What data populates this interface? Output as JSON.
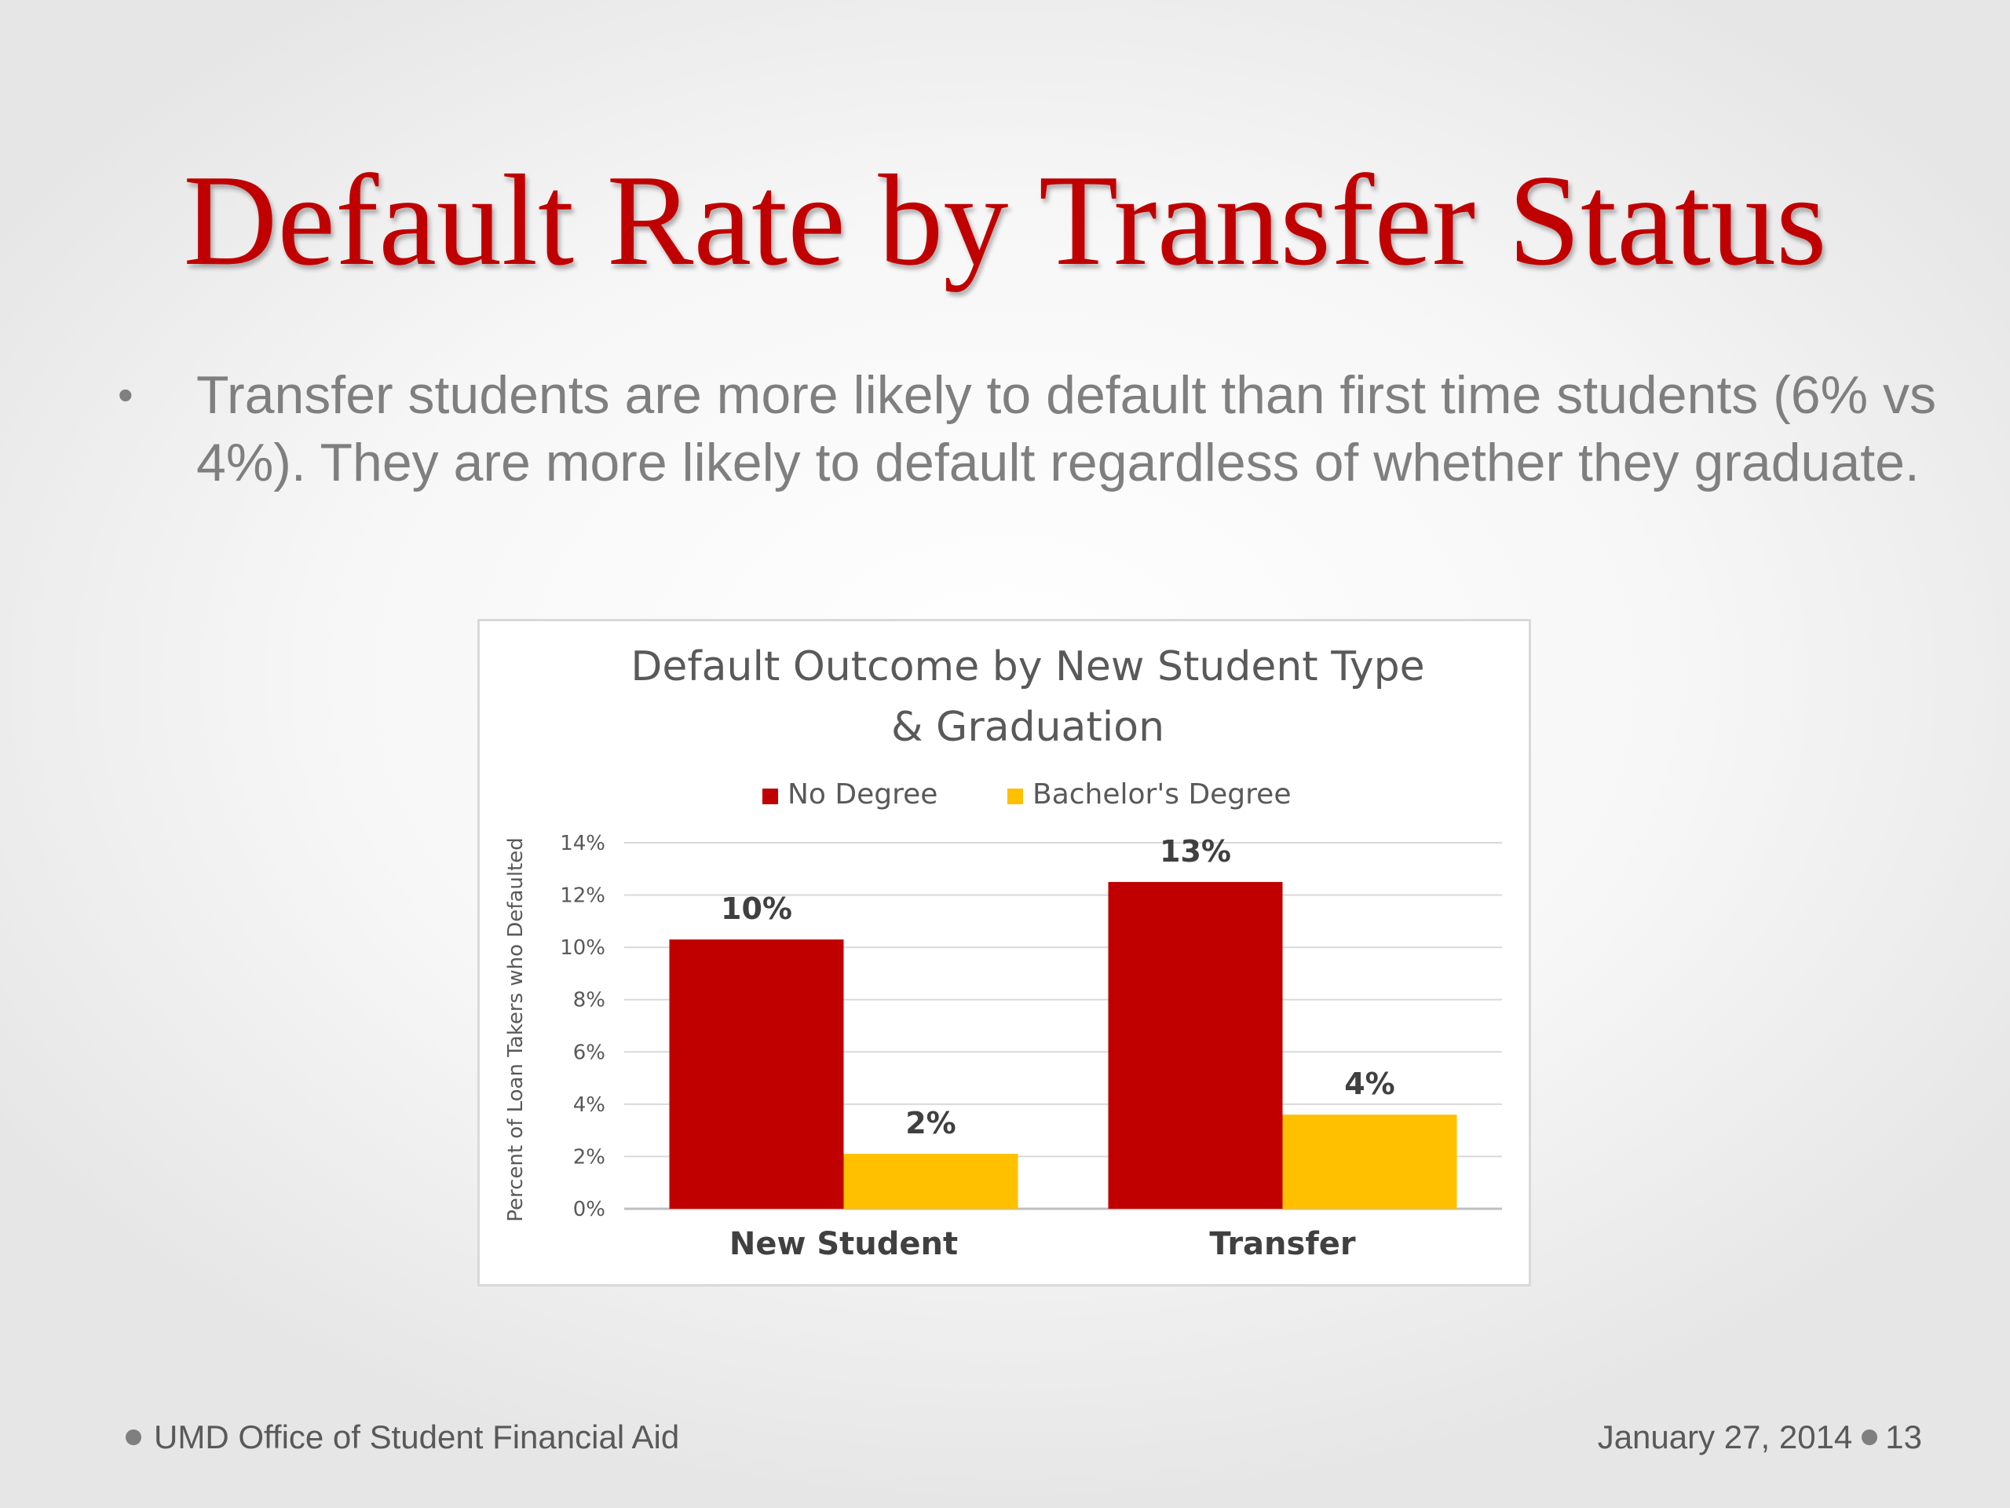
{
  "slide": {
    "title": "Default Rate by Transfer Status",
    "title_color": "#c00000",
    "bullet": "Transfer students are more likely to default than first time students (6% vs 4%). They are more likely to default regardless of whether they graduate.",
    "footer_left": "UMD Office of Student Financial Aid",
    "footer_date": "January 27, 2014",
    "page_number": "13"
  },
  "chart_data": {
    "type": "bar",
    "title_line1": "Default Outcome by New Student Type",
    "title_line2": "& Graduation",
    "ylabel": "Percent of Loan Takers who Defaulted",
    "xlabel": "",
    "categories": [
      "New Student",
      "Transfer"
    ],
    "series": [
      {
        "name": "No Degree",
        "color": "#c00000",
        "values": [
          10.3,
          12.5
        ],
        "labels": [
          "10%",
          "13%"
        ]
      },
      {
        "name": "Bachelor's Degree",
        "color": "#ffc000",
        "values": [
          2.1,
          3.6
        ],
        "labels": [
          "2%",
          "4%"
        ]
      }
    ],
    "ylim": [
      0,
      14
    ],
    "yticks": [
      0,
      2,
      4,
      6,
      8,
      10,
      12,
      14
    ],
    "ytick_labels": [
      "0%",
      "2%",
      "4%",
      "6%",
      "8%",
      "10%",
      "12%",
      "14%"
    ],
    "grid": true,
    "legend_position": "top"
  }
}
